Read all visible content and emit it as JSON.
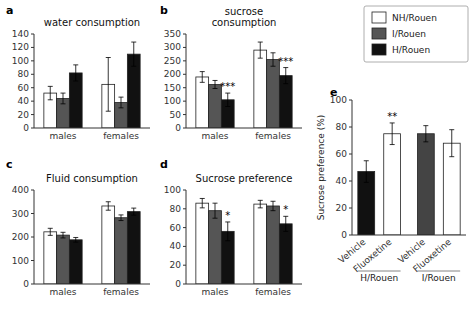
{
  "chart_data": [
    {
      "type": "bar",
      "panel_label": "a",
      "title": "water consumption",
      "categories": [
        "males",
        "females"
      ],
      "series": [
        {
          "name": "NH/Rouen",
          "color": "white",
          "values": [
            52,
            65
          ],
          "errors": [
            10,
            40
          ]
        },
        {
          "name": "I/Rouen",
          "color": "#555555",
          "values": [
            44,
            38
          ],
          "errors": [
            8,
            8
          ]
        },
        {
          "name": "H/Rouen",
          "color": "#111111",
          "values": [
            82,
            110
          ],
          "errors": [
            12,
            18
          ]
        }
      ],
      "ylim": [
        0,
        140
      ],
      "yticks": [
        0,
        20,
        40,
        60,
        80,
        100,
        120,
        140
      ],
      "grid": false,
      "legend": "upper right"
    },
    {
      "type": "bar",
      "panel_label": "b",
      "title": "sucrose\nconsumption",
      "categories": [
        "males",
        "females"
      ],
      "series": [
        {
          "name": "NH/Rouen",
          "color": "white",
          "values": [
            190,
            290
          ],
          "errors": [
            20,
            30
          ]
        },
        {
          "name": "I/Rouen",
          "color": "#555555",
          "values": [
            162,
            255
          ],
          "errors": [
            15,
            25
          ]
        },
        {
          "name": "H/Rouen",
          "color": "#111111",
          "values": [
            105,
            195
          ],
          "errors": [
            25,
            30
          ]
        }
      ],
      "ylim": [
        0,
        350
      ],
      "yticks": [
        0,
        50,
        100,
        150,
        200,
        250,
        300,
        350
      ],
      "grid": false,
      "annotations": [
        {
          "text": "***",
          "category": 0,
          "series": 2
        },
        {
          "text": "***",
          "category": 1,
          "series": 2
        }
      ]
    },
    {
      "type": "bar",
      "panel_label": "c",
      "title": "Fluid consumption",
      "categories": [
        "males",
        "females"
      ],
      "series": [
        {
          "name": "NH/Rouen",
          "color": "white",
          "values": [
            222,
            332
          ],
          "errors": [
            15,
            18
          ]
        },
        {
          "name": "I/Rouen",
          "color": "#555555",
          "values": [
            208,
            282
          ],
          "errors": [
            12,
            12
          ]
        },
        {
          "name": "H/Rouen",
          "color": "#111111",
          "values": [
            188,
            308
          ],
          "errors": [
            10,
            15
          ]
        }
      ],
      "ylim": [
        0,
        400
      ],
      "yticks": [
        0,
        100,
        200,
        300,
        400
      ],
      "grid": false
    },
    {
      "type": "bar",
      "panel_label": "d",
      "title": "Sucrose preference",
      "categories": [
        "males",
        "females"
      ],
      "series": [
        {
          "name": "NH/Rouen",
          "color": "white",
          "values": [
            86,
            85
          ],
          "errors": [
            5,
            4
          ]
        },
        {
          "name": "I/Rouen",
          "color": "#555555",
          "values": [
            78,
            83
          ],
          "errors": [
            8,
            5
          ]
        },
        {
          "name": "H/Rouen",
          "color": "#111111",
          "values": [
            56,
            64
          ],
          "errors": [
            10,
            8
          ]
        }
      ],
      "ylim": [
        0,
        100
      ],
      "yticks": [
        0,
        20,
        40,
        60,
        80,
        100
      ],
      "grid": false,
      "annotations": [
        {
          "text": "*",
          "category": 0,
          "series": 2
        },
        {
          "text": "*",
          "category": 1,
          "series": 2
        }
      ]
    },
    {
      "type": "bar",
      "panel_label": "e",
      "ylabel": "Sucrose preference (%)",
      "categories": [
        "Vehicle",
        "Fluoxetine",
        "Vehicle",
        "Fluoxetine"
      ],
      "category_groups": [
        "H/Rouen",
        "H/Rouen",
        "I/Rouen",
        "I/Rouen"
      ],
      "values": [
        47,
        75,
        75,
        68
      ],
      "errors": [
        8,
        8,
        6,
        10
      ],
      "colors": [
        "#111111",
        "white",
        "#444444",
        "white"
      ],
      "ylim": [
        0,
        100
      ],
      "yticks": [
        0,
        20,
        40,
        60,
        80,
        100
      ],
      "grid": false,
      "annotations": [
        {
          "text": "**",
          "category": 1
        }
      ]
    }
  ]
}
